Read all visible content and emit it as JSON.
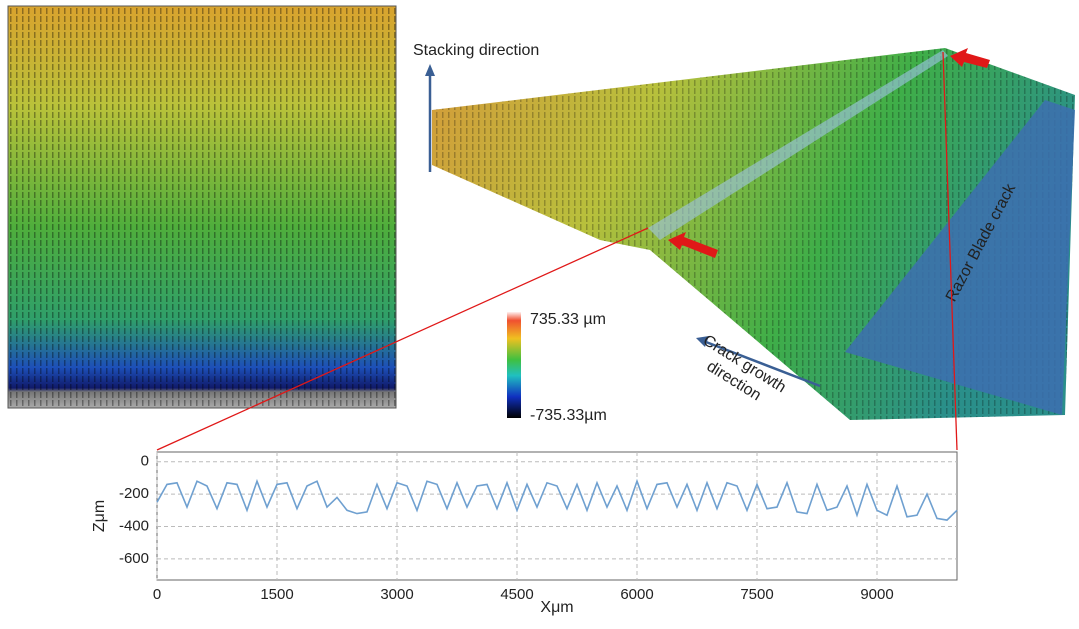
{
  "figure": {
    "stacking_label": "Stacking direction",
    "crack_growth_label": [
      "Crack growth",
      "direction"
    ],
    "razor_label": "Razor Blade crack",
    "colorbar": {
      "max_label": "735.33 µm",
      "min_label": "-735.33µm"
    }
  },
  "chart_data": {
    "type": "line",
    "x_label": "Xμm",
    "y_label": "Zμm",
    "x": [
      0,
      125,
      250,
      375,
      500,
      625,
      750,
      875,
      1000,
      1125,
      1250,
      1375,
      1500,
      1625,
      1750,
      1875,
      2000,
      2125,
      2250,
      2375,
      2500,
      2625,
      2750,
      2875,
      3000,
      3125,
      3250,
      3375,
      3500,
      3625,
      3750,
      3875,
      4000,
      4125,
      4250,
      4375,
      4500,
      4625,
      4750,
      4875,
      5000,
      5125,
      5250,
      5375,
      5500,
      5625,
      5750,
      5875,
      6000,
      6125,
      6250,
      6375,
      6500,
      6625,
      6750,
      6875,
      7000,
      7125,
      7250,
      7375,
      7500,
      7625,
      7750,
      7875,
      8000,
      8125,
      8250,
      8375,
      8500,
      8625,
      8750,
      8875,
      9000,
      9125,
      9250,
      9375,
      9500,
      9625,
      9750,
      9875,
      10000
    ],
    "values": [
      -250,
      -140,
      -130,
      -280,
      -120,
      -150,
      -290,
      -130,
      -140,
      -300,
      -120,
      -280,
      -140,
      -130,
      -290,
      -150,
      -120,
      -280,
      -220,
      -300,
      -320,
      -310,
      -140,
      -290,
      -130,
      -150,
      -300,
      -120,
      -140,
      -290,
      -130,
      -280,
      -150,
      -140,
      -290,
      -130,
      -300,
      -140,
      -280,
      -130,
      -150,
      -290,
      -140,
      -300,
      -130,
      -280,
      -150,
      -300,
      -120,
      -290,
      -140,
      -130,
      -280,
      -140,
      -300,
      -130,
      -290,
      -130,
      -150,
      -300,
      -140,
      -290,
      -280,
      -130,
      -310,
      -320,
      -140,
      -300,
      -280,
      -150,
      -330,
      -140,
      -300,
      -330,
      -150,
      -340,
      -330,
      -200,
      -350,
      -360,
      -300
    ],
    "color": "#6fa0d0",
    "xlim": [
      0,
      10000
    ],
    "ylim": [
      -730,
      60
    ],
    "xticks": [
      0,
      1500,
      3000,
      4500,
      6000,
      7500,
      9000
    ],
    "yticks": [
      0,
      -200,
      -400,
      -600
    ],
    "grid": true
  }
}
